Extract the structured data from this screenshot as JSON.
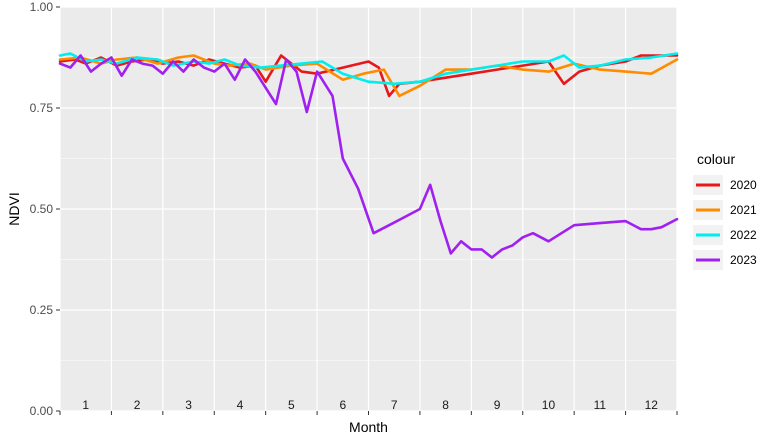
{
  "chart_data": {
    "type": "line",
    "xlabel": "Month",
    "ylabel": "NDVI",
    "ylim": [
      0,
      1
    ],
    "y_ticks": [
      "0.00",
      "0.25",
      "0.50",
      "0.75",
      "1.00"
    ],
    "xlim": [
      0.5,
      12.5
    ],
    "month_labels": [
      "1",
      "2",
      "3",
      "4",
      "5",
      "6",
      "7",
      "8",
      "9",
      "10",
      "11",
      "12"
    ],
    "grid": true,
    "legend": {
      "title": "colour",
      "position": "right"
    },
    "series": [
      {
        "name": "2020",
        "color": "#e8181a",
        "x": [
          0.5,
          0.8,
          1.0,
          1.3,
          1.6,
          1.9,
          2.2,
          2.5,
          2.8,
          3.1,
          3.4,
          3.7,
          4.0,
          4.3,
          4.5,
          4.8,
          5.2,
          5.5,
          6.0,
          6.5,
          6.7,
          6.9,
          7.1,
          7.5,
          8.0,
          8.5,
          9.0,
          9.5,
          10.0,
          10.3,
          10.6,
          11.0,
          11.5,
          11.8,
          12.2,
          12.5
        ],
        "y": [
          0.865,
          0.87,
          0.86,
          0.875,
          0.855,
          0.865,
          0.87,
          0.86,
          0.865,
          0.855,
          0.87,
          0.86,
          0.85,
          0.855,
          0.815,
          0.88,
          0.84,
          0.835,
          0.85,
          0.865,
          0.85,
          0.78,
          0.81,
          0.815,
          0.825,
          0.835,
          0.845,
          0.855,
          0.865,
          0.81,
          0.84,
          0.855,
          0.865,
          0.88,
          0.88,
          0.88
        ]
      },
      {
        "name": "2021",
        "color": "#ff8c00",
        "x": [
          0.5,
          0.9,
          1.3,
          1.6,
          2.0,
          2.4,
          2.8,
          3.1,
          3.5,
          3.8,
          4.2,
          4.5,
          5.0,
          5.5,
          6.0,
          6.4,
          6.8,
          7.1,
          7.5,
          8.0,
          8.5,
          9.0,
          9.5,
          10.0,
          10.5,
          11.0,
          11.5,
          12.0,
          12.5
        ],
        "y": [
          0.87,
          0.875,
          0.86,
          0.87,
          0.875,
          0.86,
          0.875,
          0.88,
          0.86,
          0.855,
          0.86,
          0.845,
          0.855,
          0.86,
          0.82,
          0.835,
          0.845,
          0.78,
          0.805,
          0.845,
          0.845,
          0.855,
          0.845,
          0.84,
          0.86,
          0.845,
          0.84,
          0.835,
          0.87
        ]
      },
      {
        "name": "2022",
        "color": "#00eeee",
        "x": [
          0.5,
          0.7,
          1.0,
          1.3,
          1.6,
          2.0,
          2.4,
          2.7,
          3.1,
          3.4,
          3.7,
          4.0,
          4.4,
          4.8,
          5.2,
          5.6,
          6.0,
          6.5,
          7.0,
          7.5,
          8.0,
          8.5,
          9.0,
          9.5,
          10.0,
          10.3,
          10.6,
          11.0,
          11.5,
          12.0,
          12.5
        ],
        "y": [
          0.88,
          0.885,
          0.865,
          0.87,
          0.86,
          0.875,
          0.87,
          0.855,
          0.865,
          0.86,
          0.87,
          0.855,
          0.85,
          0.855,
          0.86,
          0.865,
          0.835,
          0.815,
          0.81,
          0.815,
          0.835,
          0.845,
          0.855,
          0.865,
          0.865,
          0.88,
          0.85,
          0.855,
          0.87,
          0.875,
          0.885
        ]
      },
      {
        "name": "2023",
        "color": "#a020f0",
        "x": [
          0.5,
          0.7,
          0.9,
          1.1,
          1.3,
          1.5,
          1.7,
          1.9,
          2.1,
          2.3,
          2.5,
          2.7,
          2.9,
          3.1,
          3.3,
          3.5,
          3.7,
          3.9,
          4.1,
          4.3,
          4.5,
          4.7,
          4.9,
          5.1,
          5.3,
          5.5,
          5.8,
          6.0,
          6.3,
          6.6,
          6.9,
          7.2,
          7.5,
          7.7,
          7.9,
          8.1,
          8.3,
          8.5,
          8.7,
          8.9,
          9.1,
          9.3,
          9.5,
          9.7,
          10.0,
          10.5,
          11.0,
          11.5,
          11.8,
          12.0,
          12.2,
          12.5
        ],
        "y": [
          0.86,
          0.85,
          0.88,
          0.84,
          0.86,
          0.875,
          0.83,
          0.87,
          0.86,
          0.855,
          0.835,
          0.865,
          0.84,
          0.87,
          0.85,
          0.84,
          0.86,
          0.82,
          0.87,
          0.84,
          0.8,
          0.76,
          0.87,
          0.84,
          0.74,
          0.84,
          0.78,
          0.625,
          0.55,
          0.44,
          0.46,
          0.48,
          0.5,
          0.56,
          0.47,
          0.39,
          0.42,
          0.4,
          0.4,
          0.38,
          0.4,
          0.41,
          0.43,
          0.44,
          0.42,
          0.46,
          0.465,
          0.47,
          0.45,
          0.45,
          0.455,
          0.475
        ]
      }
    ]
  }
}
